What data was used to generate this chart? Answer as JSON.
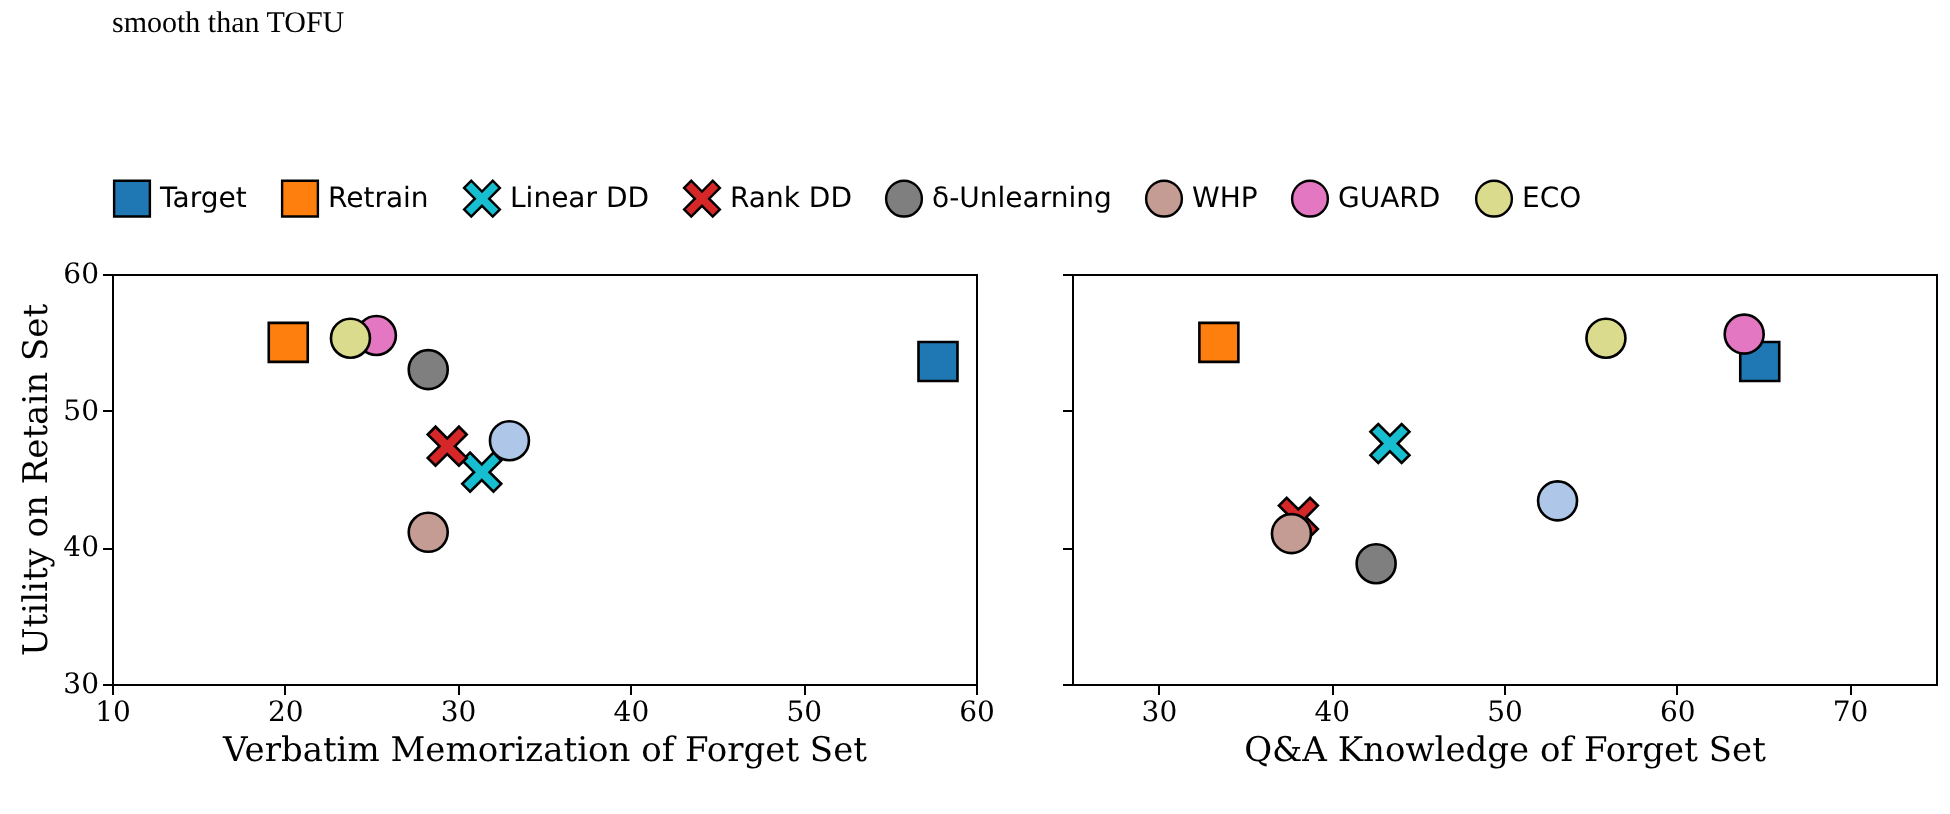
{
  "chart_data": [
    {
      "type": "scatter",
      "xlabel": "Verbatim Memorization of Forget Set",
      "ylabel": "Utility on Retain Set",
      "annotations": [
        "smooth than TOFU"
      ],
      "xlim": [
        10,
        60
      ],
      "xticks": [
        10,
        20,
        30,
        40,
        50,
        60
      ],
      "ylim": [
        30,
        60
      ],
      "yticks": [
        30,
        40,
        50,
        60
      ],
      "grid": false,
      "legend": "top",
      "series": [
        {
          "name": "Target",
          "color": "#1f77b4",
          "marker": "square",
          "x": [
            57.8
          ],
          "values": [
            53.6
          ]
        },
        {
          "name": "Retrain",
          "color": "#ff7f0e",
          "marker": "square",
          "x": [
            20.2
          ],
          "values": [
            55.0
          ]
        },
        {
          "name": "Linear DD",
          "color": "#17becf",
          "marker": "cross",
          "x": [
            31.4
          ],
          "values": [
            45.5
          ]
        },
        {
          "name": "Rank DD",
          "color": "#d62728",
          "marker": "cross",
          "x": [
            29.4
          ],
          "values": [
            47.4
          ]
        },
        {
          "name": "δ-Unlearning",
          "color": "#7f7f7f",
          "marker": "circle",
          "x": [
            28.3
          ],
          "values": [
            53.0
          ]
        },
        {
          "name": "WHP",
          "color": "#c49c94",
          "marker": "circle",
          "x": [
            28.3
          ],
          "values": [
            41.1
          ]
        },
        {
          "name": "GUARD",
          "color": "#e377c2",
          "marker": "circle",
          "x": [
            25.3
          ],
          "values": [
            55.5
          ]
        },
        {
          "name": "ECO",
          "color": "#dbdb8d",
          "marker": "circle",
          "x": [
            23.8
          ],
          "values": [
            55.3
          ]
        },
        {
          "color": "#aec7e8",
          "marker": "circle",
          "x": [
            33.0
          ],
          "values": [
            47.8
          ]
        }
      ]
    },
    {
      "type": "scatter",
      "xlabel": "Q&A Knowledge of Forget Set",
      "xlim": [
        25,
        75
      ],
      "xticks": [
        30,
        40,
        50,
        60,
        70
      ],
      "ylim": [
        30,
        60
      ],
      "yticks": [
        30,
        40,
        50,
        60
      ],
      "grid": false,
      "legend": "top",
      "tick_labels": "x",
      "series": [
        {
          "name": "Target",
          "color": "#1f77b4",
          "marker": "square",
          "x": [
            64.8
          ],
          "values": [
            53.6
          ]
        },
        {
          "name": "Retrain",
          "color": "#ff7f0e",
          "marker": "square",
          "x": [
            33.5
          ],
          "values": [
            55.0
          ]
        },
        {
          "name": "Linear DD",
          "color": "#17becf",
          "marker": "cross",
          "x": [
            43.4
          ],
          "values": [
            47.6
          ]
        },
        {
          "name": "Rank DD",
          "color": "#d62728",
          "marker": "cross",
          "x": [
            38.1
          ],
          "values": [
            42.2
          ]
        },
        {
          "name": "δ-Unlearning",
          "color": "#7f7f7f",
          "marker": "circle",
          "x": [
            42.6
          ],
          "values": [
            38.8
          ]
        },
        {
          "name": "WHP",
          "color": "#c49c94",
          "marker": "circle",
          "x": [
            37.7
          ],
          "values": [
            41.0
          ]
        },
        {
          "name": "GUARD",
          "color": "#e377c2",
          "marker": "circle",
          "x": [
            63.9
          ],
          "values": [
            55.6
          ]
        },
        {
          "name": "ECO",
          "color": "#dbdb8d",
          "marker": "circle",
          "x": [
            55.9
          ],
          "values": [
            55.3
          ]
        },
        {
          "color": "#aec7e8",
          "marker": "circle",
          "x": [
            53.1
          ],
          "values": [
            43.4
          ]
        }
      ]
    }
  ]
}
